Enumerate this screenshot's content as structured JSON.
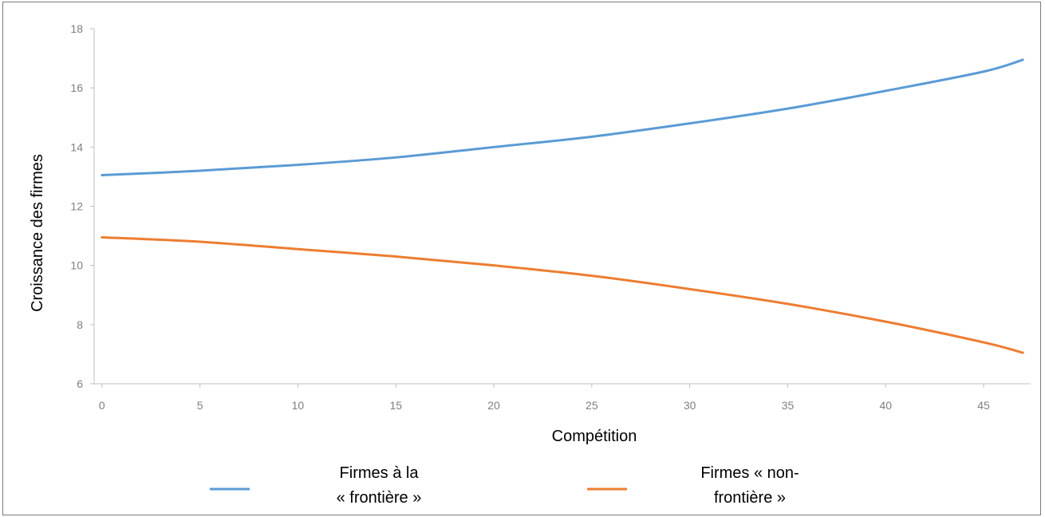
{
  "chart_data": {
    "type": "line",
    "title": "",
    "xlabel": "Compétition",
    "ylabel": "Croissance des firmes",
    "xlim": [
      -0.4,
      47.4
    ],
    "ylim": [
      6,
      18
    ],
    "x_ticks": [
      "0",
      "5",
      "10",
      "15",
      "20",
      "25",
      "30",
      "35",
      "40",
      "45"
    ],
    "y_ticks": [
      "6",
      "8",
      "10",
      "12",
      "14",
      "16",
      "18"
    ],
    "grid": false,
    "legend_position": "bottom",
    "x": [
      0,
      5,
      10,
      15,
      20,
      25,
      30,
      35,
      40,
      45,
      47
    ],
    "series": [
      {
        "name_lines": [
          "Firmes à la",
          "« frontière »"
        ],
        "color": "#5b9bd5",
        "values": [
          13.05,
          13.2,
          13.4,
          13.65,
          14.0,
          14.35,
          14.8,
          15.3,
          15.9,
          16.55,
          16.95
        ]
      },
      {
        "name_lines": [
          "Firmes « non-",
          "frontière »"
        ],
        "color": "#ed7d31",
        "values": [
          10.95,
          10.8,
          10.55,
          10.3,
          10.0,
          9.65,
          9.2,
          8.7,
          8.1,
          7.4,
          7.05
        ]
      }
    ]
  }
}
